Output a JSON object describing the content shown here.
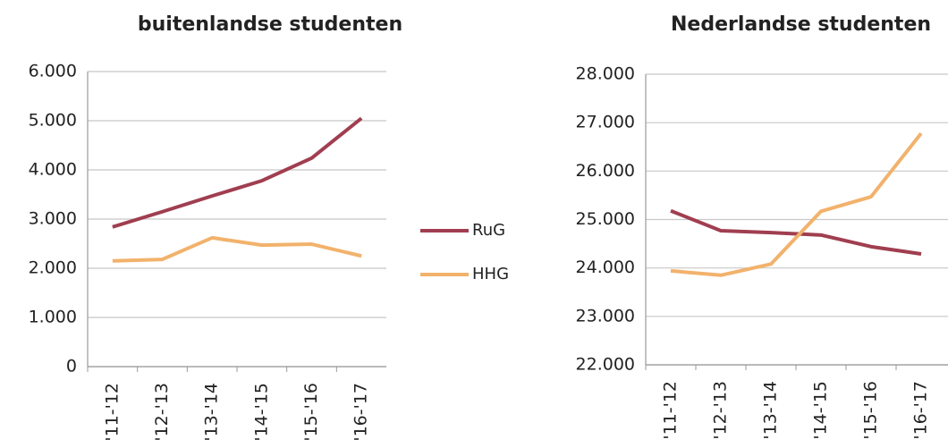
{
  "chart_data": [
    {
      "type": "line",
      "title": "buitenlandse studenten",
      "categories": [
        "'11-'12",
        "'12-'13",
        "'13-'14",
        "'14-'15",
        "'15-'16",
        "'16-'17"
      ],
      "series": [
        {
          "name": "RuG",
          "color": "#a03e50",
          "values": [
            2840,
            3150,
            3470,
            3780,
            4240,
            5050
          ]
        },
        {
          "name": "HHG",
          "color": "#f2b26c",
          "values": [
            2150,
            2180,
            2620,
            2470,
            2490,
            2250
          ]
        }
      ],
      "ylim": [
        0,
        6000
      ],
      "yticks": [
        0,
        {
          "value": 1000,
          "label": "1.000"
        },
        {
          "value": 2000,
          "label": "2.000"
        },
        {
          "value": 3000,
          "label": "3.000"
        },
        {
          "value": 4000,
          "label": "4.000"
        },
        {
          "value": 5000,
          "label": "5.000"
        },
        {
          "value": 6000,
          "label": "6.000"
        }
      ],
      "grid": true
    },
    {
      "type": "line",
      "title": "Nederlandse studenten",
      "categories": [
        "'11-'12",
        "'12-'13",
        "'13-'14",
        "'14-'15",
        "'15-'16",
        "'16-'17"
      ],
      "series": [
        {
          "name": "RuG",
          "color": "#a03e50",
          "values": [
            25180,
            24770,
            24730,
            24680,
            24440,
            24290
          ]
        },
        {
          "name": "HHG",
          "color": "#f2b26c",
          "values": [
            23940,
            23850,
            24080,
            25170,
            25470,
            26780
          ]
        }
      ],
      "ylim": [
        22000,
        28000
      ],
      "yticks": [
        {
          "value": 22000,
          "label": "22.000"
        },
        {
          "value": 23000,
          "label": "23.000"
        },
        {
          "value": 24000,
          "label": "24.000"
        },
        {
          "value": 25000,
          "label": "25.000"
        },
        {
          "value": 26000,
          "label": "26.000"
        },
        {
          "value": 27000,
          "label": "27.000"
        },
        {
          "value": 28000,
          "label": "28.000"
        }
      ],
      "grid": true
    }
  ]
}
